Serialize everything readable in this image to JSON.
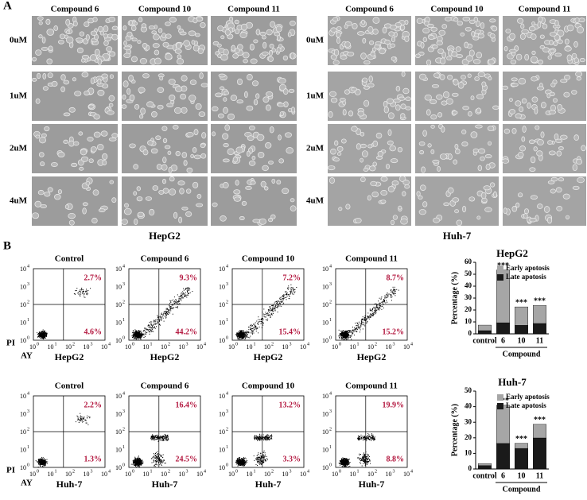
{
  "panel_a": {
    "label": "A",
    "groups": [
      {
        "name": "HepG2",
        "columns": [
          "Compound 6",
          "Compound 10",
          "Compound 11"
        ],
        "rows": [
          "0uM",
          "1uM",
          "2uM",
          "4uM"
        ]
      },
      {
        "name": "Huh-7",
        "columns": [
          "Compound 6",
          "Compound 10",
          "Compound 11"
        ],
        "rows": [
          "0uM",
          "1uM",
          "2uM",
          "4uM"
        ]
      }
    ]
  },
  "panel_b": {
    "label": "B",
    "y_axis_label": "PI",
    "x_axis_label": "AY",
    "log_ticks": {
      "base": "10",
      "exponents": [
        0,
        1,
        2,
        3,
        4
      ]
    },
    "rows": [
      {
        "cell_line": "HepG2",
        "plots": [
          {
            "title": "Control",
            "upper_right": "2.7%",
            "lower_right": "4.6%"
          },
          {
            "title": "Compound 6",
            "upper_right": "9.3%",
            "lower_right": "44.2%"
          },
          {
            "title": "Compound 10",
            "upper_right": "7.2%",
            "lower_right": "15.4%"
          },
          {
            "title": "Compound 11",
            "upper_right": "8.7%",
            "lower_right": "15.2%"
          }
        ]
      },
      {
        "cell_line": "Huh-7",
        "plots": [
          {
            "title": "Control",
            "upper_right": "2.2%",
            "lower_right": "1.3%"
          },
          {
            "title": "Compound 6",
            "upper_right": "16.4%",
            "lower_right": "24.5%"
          },
          {
            "title": "Compound 10",
            "upper_right": "13.2%",
            "lower_right": "3.3%"
          },
          {
            "title": "Compound 11",
            "upper_right": "19.9%",
            "lower_right": "8.8%"
          }
        ]
      }
    ]
  },
  "chart_data": [
    {
      "type": "bar",
      "stacked": true,
      "title": "HepG2",
      "ylabel": "Percentage (%)",
      "group_label": "Compound",
      "categories": [
        "control",
        "6",
        "10",
        "11"
      ],
      "series": [
        {
          "name": "Early apotosis",
          "color": "#a6a6a6",
          "values": [
            4.6,
            44.2,
            15.4,
            15.2
          ]
        },
        {
          "name": "Late apotosis",
          "color": "#1a1a1a",
          "values": [
            2.7,
            9.3,
            7.2,
            8.7
          ]
        }
      ],
      "annotations": [
        null,
        "***",
        "***",
        "***"
      ],
      "ylim": [
        0,
        60
      ],
      "yticks": [
        0,
        10,
        20,
        30,
        40,
        50,
        60
      ]
    },
    {
      "type": "bar",
      "stacked": true,
      "title": "Huh-7",
      "ylabel": "Percentage (%)",
      "group_label": "Compound",
      "categories": [
        "control",
        "6",
        "10",
        "11"
      ],
      "series": [
        {
          "name": "Early apotosis",
          "color": "#a6a6a6",
          "values": [
            1.3,
            24.5,
            3.3,
            8.8
          ]
        },
        {
          "name": "Late apotosis",
          "color": "#1a1a1a",
          "values": [
            2.2,
            16.4,
            13.2,
            19.9
          ]
        }
      ],
      "annotations": [
        null,
        "***",
        "***",
        "***"
      ],
      "ylim": [
        0,
        50
      ],
      "yticks": [
        0,
        10,
        20,
        30,
        40,
        50
      ]
    }
  ]
}
